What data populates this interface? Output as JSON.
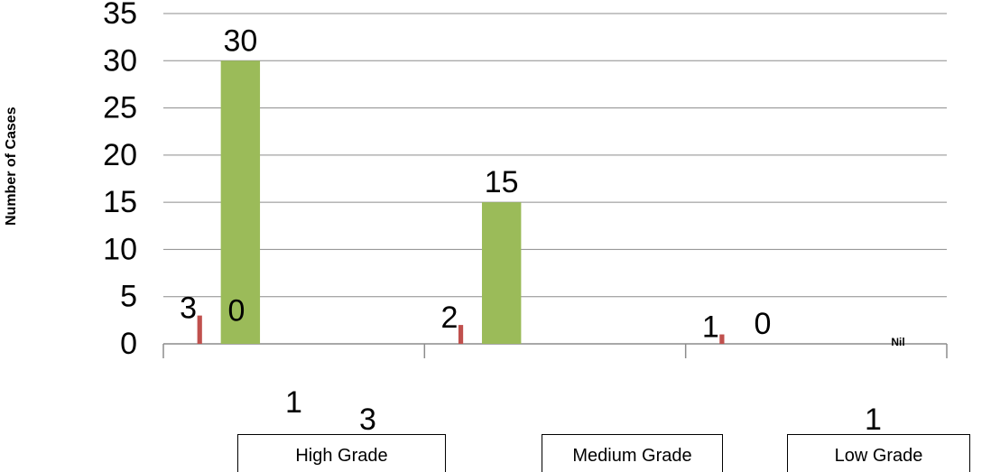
{
  "chart_data": {
    "type": "bar",
    "ylabel": "Number of Cases",
    "xlabel": "",
    "ylim": [
      0,
      35
    ],
    "yticks": [
      "0",
      "5",
      "10",
      "15",
      "20",
      "25",
      "30",
      "35"
    ],
    "categories": [
      "High Grade",
      "Medium Grade",
      "Low Grade"
    ],
    "series": [
      {
        "color": "#c0504d",
        "values": [
          3,
          2,
          1
        ],
        "labels": [
          "3",
          "2",
          "1"
        ]
      },
      {
        "color": "#9bbb59",
        "values": [
          30,
          15,
          0
        ],
        "labels": [
          "30",
          "15",
          "0"
        ]
      }
    ],
    "extra_labels": [
      "0",
      "Nil"
    ],
    "stray_numbers": [
      "1",
      "3",
      "1"
    ],
    "grid": true
  }
}
